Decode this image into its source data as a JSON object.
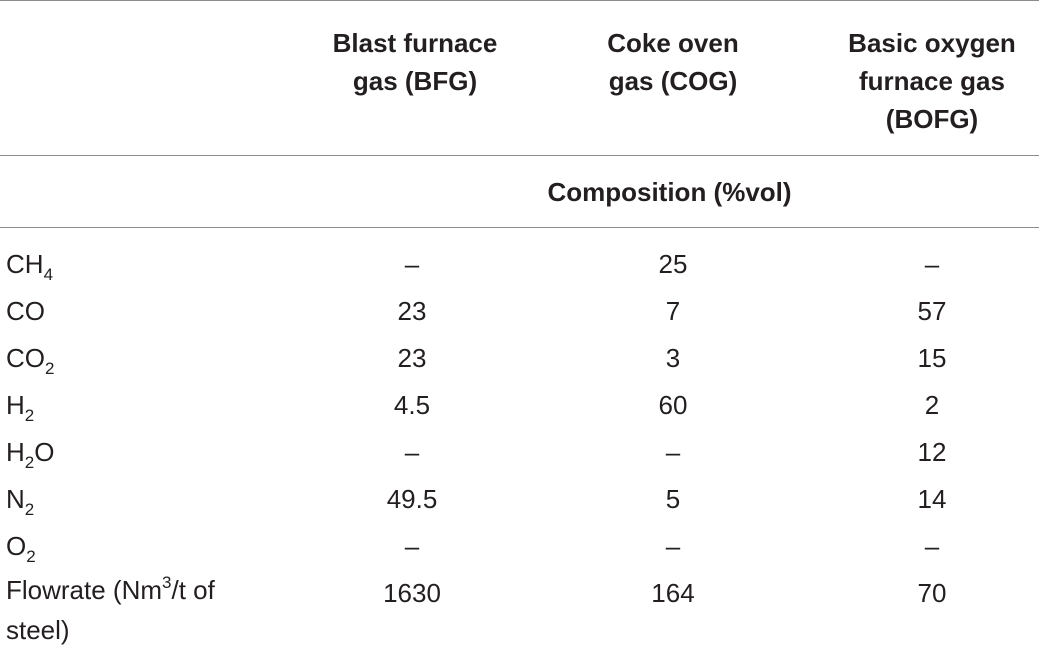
{
  "table": {
    "headers": [
      {
        "line1": "Blast furnace",
        "line2": "gas (BFG)",
        "line3": ""
      },
      {
        "line1": "Coke oven",
        "line2": "gas (COG)",
        "line3": ""
      },
      {
        "line1": "Basic oxygen",
        "line2": "furnace gas",
        "line3": "(BOFG)"
      }
    ],
    "subheader": "Composition (%vol)",
    "rows": [
      {
        "base": "CH",
        "sub": "4",
        "tail": "",
        "values": [
          "–",
          "25",
          "–"
        ]
      },
      {
        "base": "CO",
        "sub": "",
        "tail": "",
        "values": [
          "23",
          "7",
          "57"
        ]
      },
      {
        "base": "CO",
        "sub": "2",
        "tail": "",
        "values": [
          "23",
          "3",
          "15"
        ]
      },
      {
        "base": "H",
        "sub": "2",
        "tail": "",
        "values": [
          "4.5",
          "60",
          "2"
        ]
      },
      {
        "base": "H",
        "sub": "2",
        "tail": "O",
        "values": [
          "–",
          "–",
          "12"
        ]
      },
      {
        "base": "N",
        "sub": "2",
        "tail": "",
        "values": [
          "49.5",
          "5",
          "14"
        ]
      },
      {
        "base": "O",
        "sub": "2",
        "tail": "",
        "values": [
          "–",
          "–",
          "–"
        ]
      }
    ],
    "flowrate": {
      "pre": "Flowrate (Nm",
      "sup": "3",
      "post": "/t of",
      "line2": "steel)",
      "values": [
        "1630",
        "164",
        "70"
      ]
    }
  }
}
